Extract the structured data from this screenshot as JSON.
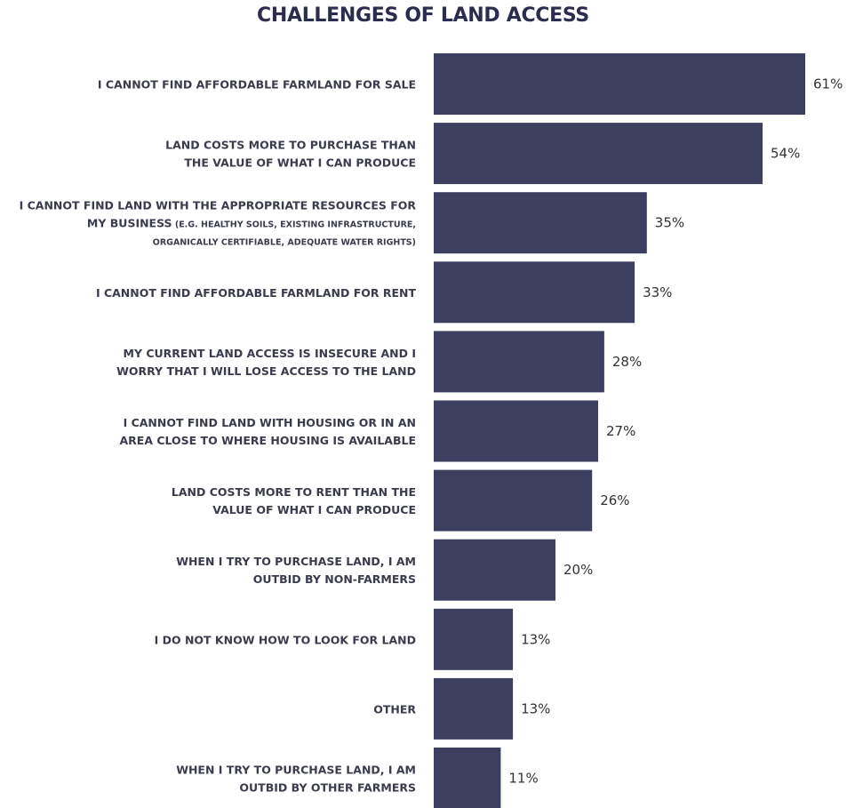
{
  "chart_data": {
    "type": "bar",
    "orientation": "horizontal",
    "title": "CHALLENGES OF LAND ACCESS",
    "xlabel": "",
    "ylabel": "",
    "bar_color": "#3c3f60",
    "xlim": [
      0,
      61
    ],
    "grid": false,
    "legend": "none",
    "categories": [
      {
        "lines": [
          [
            {
              "t": "I CANNOT FIND AFFORDABLE FARMLAND FOR SALE"
            }
          ]
        ]
      },
      {
        "lines": [
          [
            {
              "t": "LAND COSTS MORE TO PURCHASE THAN"
            }
          ],
          [
            {
              "t": "THE VALUE OF WHAT I CAN PRODUCE"
            }
          ]
        ]
      },
      {
        "lines": [
          [
            {
              "t": "I CANNOT FIND LAND WITH THE APPROPRIATE RESOURCES FOR"
            }
          ],
          [
            {
              "t": "MY BUSINESS"
            },
            {
              "t": " (E.G. HEALTHY SOILS, EXISTING INFRASTRUCTURE,",
              "small": true
            }
          ],
          [
            {
              "t": "ORGANICALLY CERTIFIABLE, ADEQUATE WATER RIGHTS)",
              "small": true
            }
          ]
        ]
      },
      {
        "lines": [
          [
            {
              "t": "I CANNOT FIND AFFORDABLE FARMLAND FOR RENT"
            }
          ]
        ]
      },
      {
        "lines": [
          [
            {
              "t": "MY CURRENT LAND ACCESS IS INSECURE AND I"
            }
          ],
          [
            {
              "t": "WORRY THAT I WILL LOSE ACCESS TO THE LAND"
            }
          ]
        ]
      },
      {
        "lines": [
          [
            {
              "t": "I CANNOT FIND LAND WITH HOUSING OR IN AN"
            }
          ],
          [
            {
              "t": "AREA CLOSE TO WHERE HOUSING IS AVAILABLE"
            }
          ]
        ]
      },
      {
        "lines": [
          [
            {
              "t": "LAND COSTS MORE TO RENT THAN THE"
            }
          ],
          [
            {
              "t": "VALUE OF WHAT I CAN PRODUCE"
            }
          ]
        ]
      },
      {
        "lines": [
          [
            {
              "t": "WHEN I TRY TO PURCHASE LAND, I AM"
            }
          ],
          [
            {
              "t": "OUTBID BY NON-FARMERS"
            }
          ]
        ]
      },
      {
        "lines": [
          [
            {
              "t": "I DO NOT KNOW HOW TO LOOK FOR LAND"
            }
          ]
        ]
      },
      {
        "lines": [
          [
            {
              "t": "OTHER"
            }
          ]
        ]
      },
      {
        "lines": [
          [
            {
              "t": "WHEN I TRY TO PURCHASE LAND, I AM"
            }
          ],
          [
            {
              "t": "OUTBID BY OTHER FARMERS"
            }
          ]
        ]
      }
    ],
    "values": [
      61,
      54,
      35,
      33,
      28,
      27,
      26,
      20,
      13,
      13,
      11
    ],
    "value_labels": [
      "61%",
      "54%",
      "35%",
      "33%",
      "28%",
      "27%",
      "26%",
      "20%",
      "13%",
      "13%",
      "11%"
    ]
  }
}
